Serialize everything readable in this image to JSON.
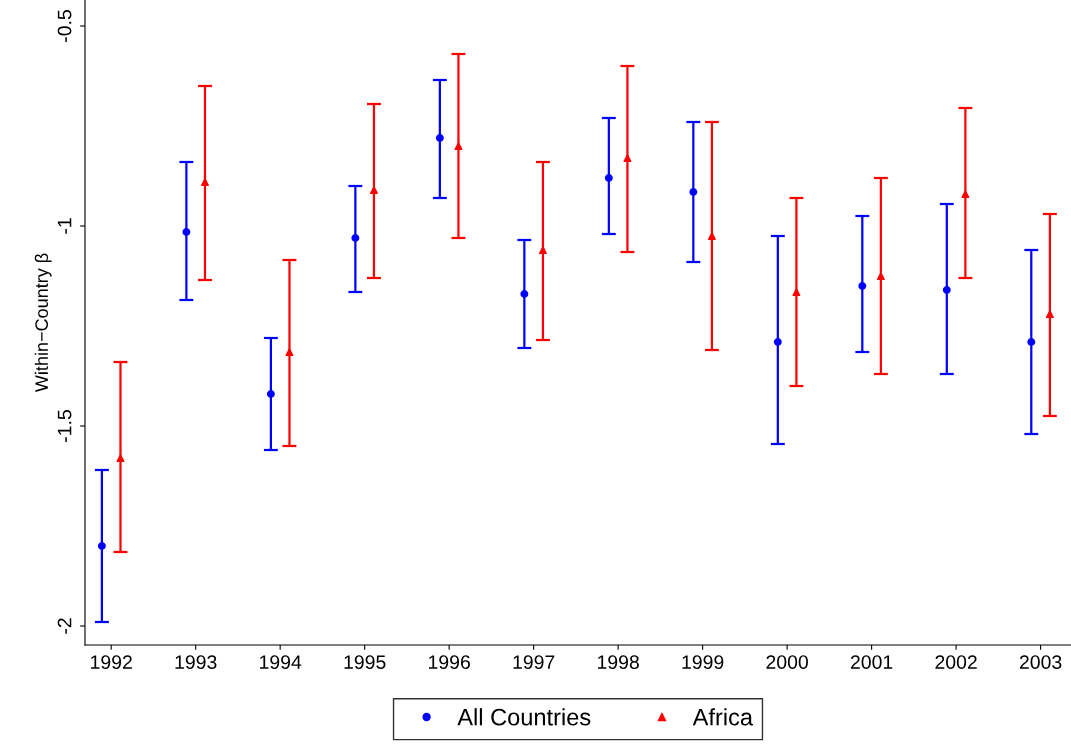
{
  "chart_data": {
    "type": "scatter",
    "ylabel": "Within−Country β",
    "categories": [
      "1992",
      "1993",
      "1994",
      "1995",
      "1996",
      "1997",
      "1998",
      "1999",
      "2000",
      "2001",
      "2002",
      "2003"
    ],
    "series": [
      {
        "name": "All Countries",
        "color": "#0000ff",
        "marker": "circle",
        "values": [
          -1.8,
          -1.015,
          -1.42,
          -1.03,
          -0.78,
          -1.17,
          -0.88,
          -0.915,
          -1.29,
          -1.15,
          -1.16,
          -1.29
        ],
        "errors": [
          [
            -1.99,
            -1.61
          ],
          [
            -1.185,
            -0.84
          ],
          [
            -1.56,
            -1.28
          ],
          [
            -1.165,
            -0.9
          ],
          [
            -0.93,
            -0.635
          ],
          [
            -1.305,
            -1.035
          ],
          [
            -1.02,
            -0.73
          ],
          [
            -1.09,
            -0.74
          ],
          [
            -1.545,
            -1.025
          ],
          [
            -1.315,
            -0.975
          ],
          [
            -1.37,
            -0.945
          ],
          [
            -1.52,
            -1.06
          ]
        ]
      },
      {
        "name": "Africa",
        "color": "#ff0000",
        "marker": "triangle",
        "values": [
          -1.58,
          -0.89,
          -1.315,
          -0.91,
          -0.8,
          -1.06,
          -0.83,
          -1.025,
          -1.165,
          -1.125,
          -0.92,
          -1.22
        ],
        "errors": [
          [
            -1.815,
            -1.34
          ],
          [
            -1.135,
            -0.65
          ],
          [
            -1.55,
            -1.085
          ],
          [
            -1.13,
            -0.695
          ],
          [
            -1.03,
            -0.57
          ],
          [
            -1.285,
            -0.84
          ],
          [
            -1.065,
            -0.6
          ],
          [
            -1.31,
            -0.74
          ],
          [
            -1.4,
            -0.93
          ],
          [
            -1.37,
            -0.88
          ],
          [
            -1.13,
            -0.705
          ],
          [
            -1.475,
            -0.97
          ]
        ]
      }
    ],
    "ylim": [
      -2.0475,
      -0.435
    ],
    "yticks": [
      -2,
      -1.5,
      -1,
      -0.5
    ],
    "grid": false,
    "legend": "bottom"
  }
}
